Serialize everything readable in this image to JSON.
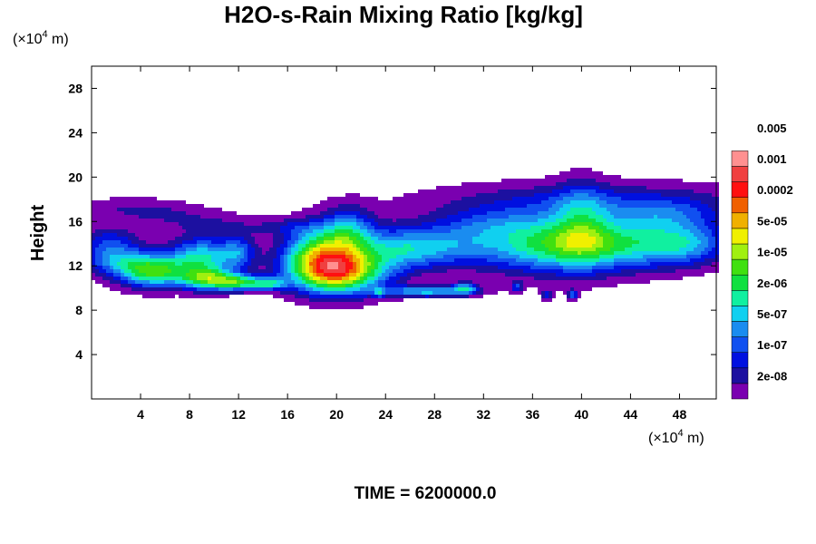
{
  "chart_data": {
    "type": "heatmap",
    "title": "H2O-s-Rain Mixing Ratio [kg/kg]",
    "ylabel": "Height",
    "xlabel": "",
    "x_unit": {
      "prefix": "(×10",
      "exp": "4",
      "suffix": " m)"
    },
    "y_unit": {
      "prefix": "(×10",
      "exp": "4",
      "suffix": " m)"
    },
    "xlim": [
      0,
      51
    ],
    "ylim": [
      0,
      30
    ],
    "x_ticks": [
      4,
      8,
      12,
      16,
      20,
      24,
      28,
      32,
      36,
      40,
      44,
      48
    ],
    "y_ticks": [
      4,
      8,
      12,
      16,
      20,
      24,
      28
    ],
    "x_tick_labels": [
      "4",
      "8",
      "12",
      "16",
      "20",
      "24",
      "28",
      "32",
      "36",
      "40",
      "44",
      "48"
    ],
    "y_tick_labels": [
      "4",
      "8",
      "12",
      "16",
      "20",
      "24",
      "28"
    ],
    "colorbar": {
      "colors": [
        "#7a00b0",
        "#1c10a0",
        "#0010e0",
        "#1050f0",
        "#1a8cf0",
        "#10d0f0",
        "#10f0a0",
        "#10e040",
        "#40e010",
        "#a0f010",
        "#f0f000",
        "#f0b000",
        "#f06000",
        "#ff1010",
        "#f04040",
        "#ff9090"
      ],
      "labels": [
        "2e-08",
        "1e-07",
        "5e-07",
        "2e-06",
        "1e-05",
        "5e-05",
        "0.0002",
        "0.001",
        "0.005"
      ]
    },
    "field_blobs": [
      {
        "x": 3,
        "y": 17.2,
        "sx": 3.2,
        "sy": 0.7,
        "amp": 1.4
      },
      {
        "x": 7,
        "y": 16.3,
        "sx": 3.0,
        "sy": 0.8,
        "amp": 1.3
      },
      {
        "x": 11,
        "y": 15.5,
        "sx": 2.5,
        "sy": 0.7,
        "amp": 1.2
      },
      {
        "x": 1.5,
        "y": 14.2,
        "sx": 1.8,
        "sy": 1.0,
        "amp": 3.0
      },
      {
        "x": 2,
        "y": 12.5,
        "sx": 2.0,
        "sy": 0.9,
        "amp": 4.0
      },
      {
        "x": 5,
        "y": 11.5,
        "sx": 2.0,
        "sy": 1.0,
        "amp": 8.5
      },
      {
        "x": 9,
        "y": 12.8,
        "sx": 1.8,
        "sy": 1.2,
        "amp": 6.5
      },
      {
        "x": 9.5,
        "y": 10.8,
        "sx": 1.5,
        "sy": 0.7,
        "amp": 7.5
      },
      {
        "x": 12,
        "y": 10.5,
        "sx": 1.3,
        "sy": 0.5,
        "amp": 7.0
      },
      {
        "x": 14.5,
        "y": 10.4,
        "sx": 1.0,
        "sy": 0.4,
        "amp": 5.5
      },
      {
        "x": 12,
        "y": 13.2,
        "sx": 1.0,
        "sy": 1.0,
        "amp": 4.0
      },
      {
        "x": 20,
        "y": 11.5,
        "sx": 2.6,
        "sy": 1.4,
        "amp": 12.5
      },
      {
        "x": 18.5,
        "y": 13.5,
        "sx": 2.0,
        "sy": 1.6,
        "amp": 6.5
      },
      {
        "x": 21,
        "y": 15,
        "sx": 1.5,
        "sy": 1.5,
        "amp": 5.0
      },
      {
        "x": 25,
        "y": 13.5,
        "sx": 2.5,
        "sy": 1.4,
        "amp": 4.5
      },
      {
        "x": 29,
        "y": 13.8,
        "sx": 3.0,
        "sy": 1.3,
        "amp": 3.5
      },
      {
        "x": 27.5,
        "y": 9.7,
        "sx": 2.5,
        "sy": 0.35,
        "amp": 6.0
      },
      {
        "x": 30.5,
        "y": 10,
        "sx": 0.7,
        "sy": 0.35,
        "amp": 5.0
      },
      {
        "x": 37,
        "y": 14,
        "sx": 4.0,
        "sy": 1.8,
        "amp": 6.5
      },
      {
        "x": 43,
        "y": 14,
        "sx": 4.0,
        "sy": 1.6,
        "amp": 5.5
      },
      {
        "x": 48.5,
        "y": 14,
        "sx": 2.5,
        "sy": 1.3,
        "amp": 4.5
      },
      {
        "x": 41,
        "y": 17.8,
        "sx": 9.0,
        "sy": 1.2,
        "amp": 2.8
      },
      {
        "x": 40,
        "y": 16,
        "sx": 1.5,
        "sy": 2.5,
        "amp": 3.0
      },
      {
        "x": 47,
        "y": 16.5,
        "sx": 3.0,
        "sy": 1.0,
        "amp": 2.5
      },
      {
        "x": 32,
        "y": 15.8,
        "sx": 3.0,
        "sy": 1.0,
        "amp": 2.0
      },
      {
        "x": 34.7,
        "y": 10.1,
        "sx": 0.3,
        "sy": 0.3,
        "amp": 4.0
      },
      {
        "x": 37.2,
        "y": 9.4,
        "sx": 0.3,
        "sy": 0.3,
        "amp": 3.5
      },
      {
        "x": 39.3,
        "y": 9.4,
        "sx": 0.3,
        "sy": 0.3,
        "amp": 4.0
      },
      {
        "x": 23.5,
        "y": 9.6,
        "sx": 0.3,
        "sy": 0.3,
        "amp": 3.5
      },
      {
        "x": 16,
        "y": 15.5,
        "sx": 2.0,
        "sy": 0.5,
        "amp": 1.5
      }
    ]
  },
  "footer": {
    "time_label": "TIME = 6200000.0"
  }
}
